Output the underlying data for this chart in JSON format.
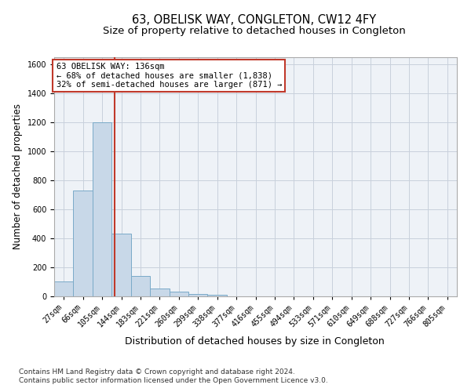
{
  "title": "63, OBELISK WAY, CONGLETON, CW12 4FY",
  "subtitle": "Size of property relative to detached houses in Congleton",
  "xlabel": "Distribution of detached houses by size in Congleton",
  "ylabel": "Number of detached properties",
  "footnote1": "Contains HM Land Registry data © Crown copyright and database right 2024.",
  "footnote2": "Contains public sector information licensed under the Open Government Licence v3.0.",
  "bar_labels": [
    "27sqm",
    "66sqm",
    "105sqm",
    "144sqm",
    "183sqm",
    "221sqm",
    "260sqm",
    "299sqm",
    "338sqm",
    "377sqm",
    "416sqm",
    "455sqm",
    "494sqm",
    "533sqm",
    "571sqm",
    "610sqm",
    "649sqm",
    "688sqm",
    "727sqm",
    "766sqm",
    "805sqm"
  ],
  "bar_values": [
    100,
    730,
    1200,
    430,
    140,
    50,
    30,
    15,
    10,
    0,
    0,
    0,
    0,
    0,
    0,
    0,
    0,
    0,
    0,
    0,
    0
  ],
  "bar_color": "#c8d8e8",
  "bar_edgecolor": "#7aaac8",
  "grid_color": "#c8d0dc",
  "ylim": [
    0,
    1650
  ],
  "yticks": [
    0,
    200,
    400,
    600,
    800,
    1000,
    1200,
    1400,
    1600
  ],
  "property_label": "63 OBELISK WAY: 136sqm",
  "annotation_line1": "← 68% of detached houses are smaller (1,838)",
  "annotation_line2": "32% of semi-detached houses are larger (871) →",
  "vline_color": "#c0392b",
  "vline_x_bin": 2.64,
  "background_color": "#eef2f7",
  "title_fontsize": 10.5,
  "subtitle_fontsize": 9.5,
  "ylabel_fontsize": 8.5,
  "xlabel_fontsize": 9,
  "tick_fontsize": 7,
  "annotation_fontsize": 7.5,
  "footnote_fontsize": 6.5
}
